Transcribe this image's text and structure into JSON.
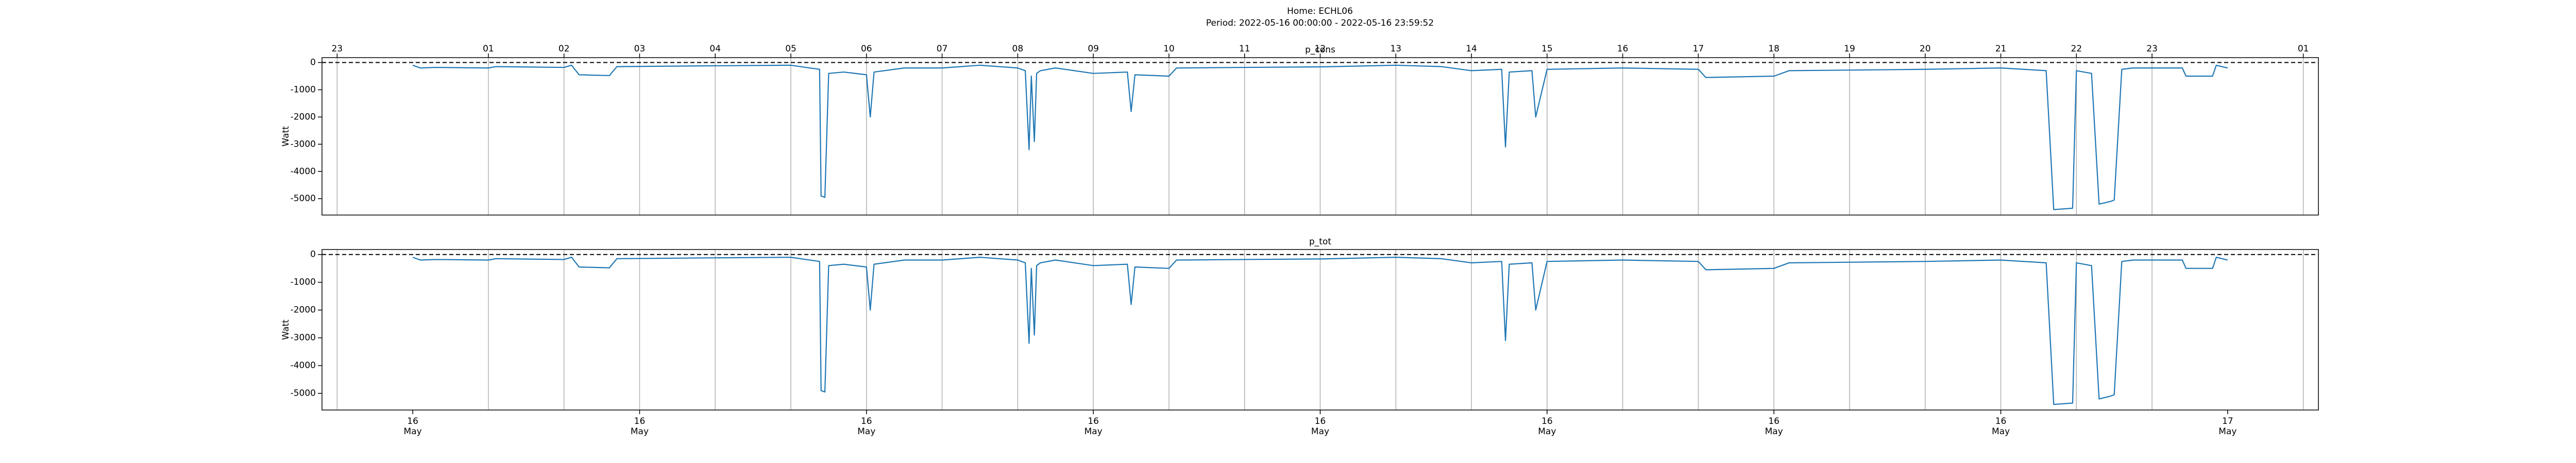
{
  "title": "Home: ECHL06",
  "subtitle": "Period: 2022-05-16 00:00:00 - 2022-05-16 23:59:52",
  "chart_data": [
    {
      "type": "line",
      "title": "p_cons",
      "ylabel": "Watt",
      "color": "#1f77b4",
      "x": [
        0,
        0.1,
        0.3,
        1.0,
        1.1,
        2.0,
        2.1,
        2.2,
        2.6,
        2.7,
        4.0,
        5.0,
        5.2,
        5.38,
        5.4,
        5.45,
        5.5,
        5.7,
        6.0,
        6.05,
        6.1,
        6.5,
        7.0,
        7.5,
        8.0,
        8.1,
        8.15,
        8.18,
        8.22,
        8.25,
        8.3,
        8.5,
        9.0,
        9.45,
        9.5,
        9.55,
        10.0,
        10.1,
        11.0,
        12.0,
        13.0,
        13.6,
        14.0,
        14.4,
        14.45,
        14.5,
        14.8,
        14.85,
        15.0,
        16.0,
        17.0,
        17.1,
        18.0,
        18.2,
        20.0,
        21.0,
        21.6,
        21.7,
        21.95,
        22.0,
        22.2,
        22.3,
        22.45,
        22.5,
        22.6,
        22.75,
        23.4,
        23.45,
        23.8,
        23.85,
        24.0
      ],
      "values": [
        -100,
        -200,
        -180,
        -200,
        -150,
        -180,
        -100,
        -450,
        -480,
        -150,
        -120,
        -100,
        -180,
        -250,
        -4900,
        -4950,
        -400,
        -350,
        -450,
        -2000,
        -350,
        -200,
        -200,
        -100,
        -200,
        -300,
        -3200,
        -500,
        -2900,
        -400,
        -300,
        -200,
        -400,
        -350,
        -1800,
        -450,
        -500,
        -200,
        -180,
        -160,
        -100,
        -150,
        -300,
        -250,
        -3100,
        -350,
        -300,
        -2000,
        -250,
        -200,
        -250,
        -550,
        -500,
        -300,
        -250,
        -200,
        -300,
        -5400,
        -5350,
        -300,
        -400,
        -5200,
        -5100,
        -5050,
        -250,
        -200,
        -200,
        -500,
        -500,
        -100,
        -200
      ],
      "xlim": [
        -1.2,
        25.2
      ],
      "ylim": [
        -5600,
        180
      ],
      "yticks": [
        -5000,
        -4000,
        -3000,
        -2000,
        -1000,
        0
      ],
      "x2ticks": [
        {
          "value": -1,
          "label": "23"
        },
        {
          "value": 1,
          "label": "01"
        },
        {
          "value": 2,
          "label": "02"
        },
        {
          "value": 3,
          "label": "03"
        },
        {
          "value": 4,
          "label": "04"
        },
        {
          "value": 5,
          "label": "05"
        },
        {
          "value": 6,
          "label": "06"
        },
        {
          "value": 7,
          "label": "07"
        },
        {
          "value": 8,
          "label": "08"
        },
        {
          "value": 9,
          "label": "09"
        },
        10,
        11,
        12,
        13,
        14,
        15,
        16,
        17,
        18,
        19,
        20,
        21,
        22,
        23,
        {
          "value": 25,
          "label": "01"
        }
      ],
      "grid": true,
      "hline": 0
    },
    {
      "type": "line",
      "title": "p_tot",
      "ylabel": "Watt",
      "color": "#1f77b4",
      "x": [
        0,
        0.1,
        0.3,
        1.0,
        1.1,
        2.0,
        2.1,
        2.2,
        2.6,
        2.7,
        4.0,
        5.0,
        5.2,
        5.38,
        5.4,
        5.45,
        5.5,
        5.7,
        6.0,
        6.05,
        6.1,
        6.5,
        7.0,
        7.5,
        8.0,
        8.1,
        8.15,
        8.18,
        8.22,
        8.25,
        8.3,
        8.5,
        9.0,
        9.45,
        9.5,
        9.55,
        10.0,
        10.1,
        11.0,
        12.0,
        13.0,
        13.6,
        14.0,
        14.4,
        14.45,
        14.5,
        14.8,
        14.85,
        15.0,
        16.0,
        17.0,
        17.1,
        18.0,
        18.2,
        20.0,
        21.0,
        21.6,
        21.7,
        21.95,
        22.0,
        22.2,
        22.3,
        22.45,
        22.5,
        22.6,
        22.75,
        23.4,
        23.45,
        23.8,
        23.85,
        24.0
      ],
      "values": [
        -100,
        -200,
        -180,
        -200,
        -150,
        -180,
        -100,
        -450,
        -480,
        -150,
        -120,
        -100,
        -180,
        -250,
        -4900,
        -4950,
        -400,
        -350,
        -450,
        -2000,
        -350,
        -200,
        -200,
        -100,
        -200,
        -300,
        -3200,
        -500,
        -2900,
        -400,
        -300,
        -200,
        -400,
        -350,
        -1800,
        -450,
        -500,
        -200,
        -180,
        -160,
        -100,
        -150,
        -300,
        -250,
        -3100,
        -350,
        -300,
        -2000,
        -250,
        -200,
        -250,
        -550,
        -500,
        -300,
        -250,
        -200,
        -300,
        -5400,
        -5350,
        -300,
        -400,
        -5200,
        -5100,
        -5050,
        -250,
        -200,
        -200,
        -500,
        -500,
        -100,
        -200
      ],
      "xlim": [
        -1.2,
        25.2
      ],
      "ylim": [
        -5600,
        180
      ],
      "yticks": [
        -5000,
        -4000,
        -3000,
        -2000,
        -1000,
        0
      ],
      "xticks": [
        {
          "value": 0,
          "label": "16 May"
        },
        {
          "value": 3,
          "label": "16 May"
        },
        {
          "value": 6,
          "label": "16 May"
        },
        {
          "value": 9,
          "label": "16 May"
        },
        {
          "value": 12,
          "label": "16 May"
        },
        {
          "value": 15,
          "label": "16 May"
        },
        {
          "value": 18,
          "label": "16 May"
        },
        {
          "value": 21,
          "label": "16 May"
        },
        {
          "value": 24,
          "label": "17 May"
        }
      ],
      "xgrid": [
        -1,
        1,
        2,
        3,
        4,
        5,
        6,
        7,
        8,
        9,
        10,
        11,
        12,
        13,
        14,
        15,
        16,
        17,
        18,
        19,
        20,
        21,
        22,
        23,
        25
      ],
      "grid": true,
      "hline": 0
    }
  ]
}
